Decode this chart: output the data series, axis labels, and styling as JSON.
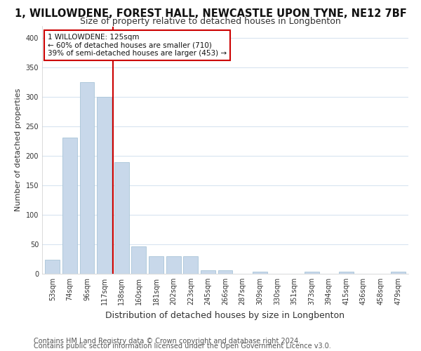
{
  "title1": "1, WILLOWDENE, FOREST HALL, NEWCASTLE UPON TYNE, NE12 7BF",
  "title2": "Size of property relative to detached houses in Longbenton",
  "xlabel": "Distribution of detached houses by size in Longbenton",
  "ylabel": "Number of detached properties",
  "categories": [
    "53sqm",
    "74sqm",
    "96sqm",
    "117sqm",
    "138sqm",
    "160sqm",
    "181sqm",
    "202sqm",
    "223sqm",
    "245sqm",
    "266sqm",
    "287sqm",
    "309sqm",
    "330sqm",
    "351sqm",
    "373sqm",
    "394sqm",
    "415sqm",
    "436sqm",
    "458sqm",
    "479sqm"
  ],
  "values": [
    24,
    231,
    325,
    300,
    190,
    46,
    30,
    30,
    30,
    6,
    6,
    0,
    4,
    0,
    0,
    4,
    0,
    4,
    0,
    0,
    3
  ],
  "bar_color": "#c8d8ea",
  "bar_edgecolor": "#a8c4d8",
  "vline_x": 3.5,
  "vline_color": "#cc0000",
  "annotation_text": "1 WILLOWDENE: 125sqm\n← 60% of detached houses are smaller (710)\n39% of semi-detached houses are larger (453) →",
  "annotation_box_color": "#ffffff",
  "annotation_box_edgecolor": "#cc0000",
  "ylim": [
    0,
    420
  ],
  "yticks": [
    0,
    50,
    100,
    150,
    200,
    250,
    300,
    350,
    400
  ],
  "footer1": "Contains HM Land Registry data © Crown copyright and database right 2024.",
  "footer2": "Contains public sector information licensed under the Open Government Licence v3.0.",
  "background_color": "#ffffff",
  "grid_color": "#d8e4f0",
  "title1_fontsize": 10.5,
  "title2_fontsize": 9,
  "xlabel_fontsize": 9,
  "ylabel_fontsize": 8,
  "footer_fontsize": 7,
  "tick_fontsize": 7,
  "annot_fontsize": 7.5
}
